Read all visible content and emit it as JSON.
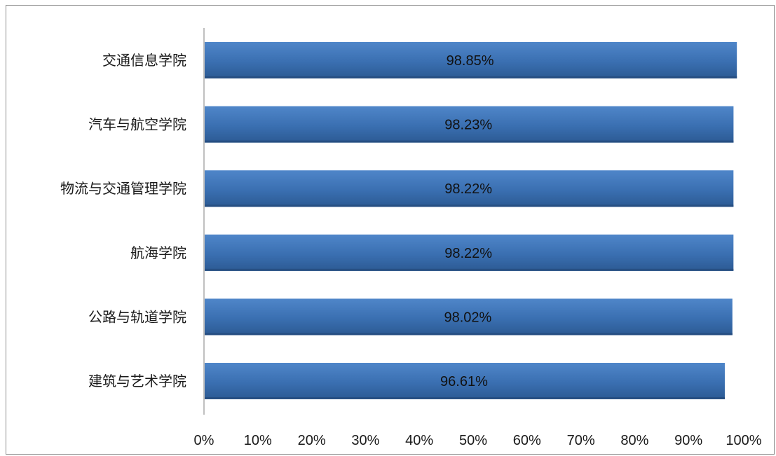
{
  "chart_data": {
    "type": "bar",
    "orientation": "horizontal",
    "categories": [
      "交通信息学院",
      "汽车与航空学院",
      "物流与交通管理学院",
      "航海学院",
      "公路与轨道学院",
      "建筑与艺术学院"
    ],
    "values": [
      98.85,
      98.23,
      98.22,
      98.22,
      98.02,
      96.61
    ],
    "data_labels": [
      "98.85%",
      "98.23%",
      "98.22%",
      "98.22%",
      "98.02%",
      "96.61%"
    ],
    "x_ticks": [
      "0%",
      "10%",
      "20%",
      "30%",
      "40%",
      "50%",
      "60%",
      "70%",
      "80%",
      "90%",
      "100%"
    ],
    "xlim": [
      0,
      100
    ],
    "title": "",
    "xlabel": "",
    "ylabel": "",
    "grid": false,
    "legend": "none",
    "bar_color": "#3e74b6"
  }
}
